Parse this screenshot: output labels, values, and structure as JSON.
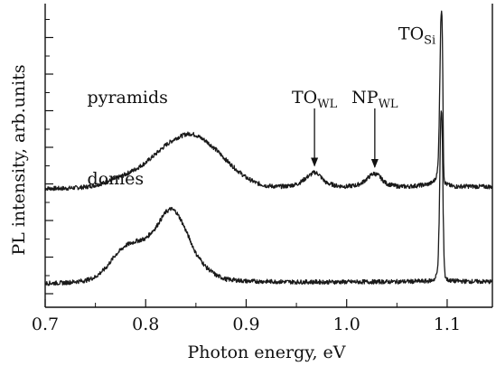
{
  "chart_data": {
    "type": "line",
    "xlabel": "Photon energy, eV",
    "ylabel": "PL intensity, arb.units",
    "xlim": [
      0.7,
      1.145
    ],
    "ylim": [
      0,
      1
    ],
    "x_ticks": [
      "0.7",
      "0.8",
      "0.9",
      "1.0",
      "1.1"
    ],
    "y_ticks_labeled": false,
    "grid": false,
    "line_color": "#1a1a1a",
    "series": [
      {
        "name": "pyramids",
        "x": [
          0.7,
          0.72,
          0.74,
          0.75,
          0.76,
          0.77,
          0.78,
          0.79,
          0.8,
          0.81,
          0.82,
          0.83,
          0.84,
          0.845,
          0.85,
          0.86,
          0.87,
          0.88,
          0.89,
          0.9,
          0.91,
          0.92,
          0.93,
          0.94,
          0.95,
          0.955,
          0.96,
          0.965,
          0.968,
          0.972,
          0.976,
          0.98,
          0.99,
          1.0,
          1.01,
          1.015,
          1.02,
          1.025,
          1.028,
          1.032,
          1.036,
          1.04,
          1.05,
          1.06,
          1.07,
          1.08,
          1.085,
          1.088,
          1.09,
          1.091,
          1.092,
          1.093,
          1.0935,
          1.094,
          1.0945,
          1.095,
          1.0955,
          1.096,
          1.0965,
          1.097,
          1.098,
          1.1,
          1.105,
          1.11,
          1.12,
          1.13,
          1.145
        ],
        "y": [
          0.385,
          0.385,
          0.39,
          0.397,
          0.407,
          0.421,
          0.437,
          0.456,
          0.48,
          0.512,
          0.545,
          0.57,
          0.585,
          0.587,
          0.582,
          0.56,
          0.528,
          0.49,
          0.455,
          0.425,
          0.405,
          0.395,
          0.392,
          0.393,
          0.4,
          0.41,
          0.425,
          0.438,
          0.445,
          0.438,
          0.42,
          0.405,
          0.395,
          0.392,
          0.397,
          0.405,
          0.42,
          0.437,
          0.44,
          0.432,
          0.415,
          0.402,
          0.393,
          0.392,
          0.395,
          0.4,
          0.406,
          0.418,
          0.44,
          0.48,
          0.62,
          0.85,
          0.99,
          1.03,
          1.04,
          1.0,
          0.88,
          0.64,
          0.47,
          0.42,
          0.405,
          0.4,
          0.393,
          0.392,
          0.393,
          0.392,
          0.391
        ]
      },
      {
        "name": "domes",
        "x": [
          0.7,
          0.72,
          0.74,
          0.75,
          0.76,
          0.77,
          0.78,
          0.79,
          0.8,
          0.81,
          0.815,
          0.82,
          0.825,
          0.83,
          0.835,
          0.84,
          0.85,
          0.86,
          0.87,
          0.88,
          0.9,
          0.95,
          1.0,
          1.05,
          1.08,
          1.085,
          1.088,
          1.09,
          1.091,
          1.092,
          1.093,
          1.0935,
          1.094,
          1.0945,
          1.095,
          1.0955,
          1.096,
          1.097,
          1.098,
          1.1,
          1.105,
          1.12,
          1.145
        ],
        "y": [
          0.035,
          0.037,
          0.045,
          0.058,
          0.09,
          0.14,
          0.175,
          0.19,
          0.2,
          0.24,
          0.27,
          0.298,
          0.31,
          0.3,
          0.27,
          0.23,
          0.145,
          0.095,
          0.065,
          0.05,
          0.043,
          0.04,
          0.04,
          0.041,
          0.043,
          0.046,
          0.052,
          0.075,
          0.12,
          0.26,
          0.5,
          0.64,
          0.67,
          0.66,
          0.62,
          0.5,
          0.3,
          0.12,
          0.06,
          0.048,
          0.044,
          0.042,
          0.041
        ]
      }
    ],
    "annotations": [
      {
        "id": "pyramids",
        "text": "pyramids",
        "x": 0.782,
        "y": 0.7
      },
      {
        "id": "domes",
        "text": "domes",
        "x": 0.77,
        "y": 0.4
      },
      {
        "id": "to-wl",
        "main": "TO",
        "sub": "WL",
        "x": 0.968,
        "y": 0.7,
        "arrow": true,
        "arrow_y1": 0.68,
        "arrow_y2": 0.465
      },
      {
        "id": "np-wl",
        "main": "NP",
        "sub": "WL",
        "x": 1.028,
        "y": 0.7,
        "arrow": true,
        "arrow_y1": 0.68,
        "arrow_y2": 0.46
      },
      {
        "id": "to-si",
        "main": "TO",
        "sub": "Si",
        "x": 1.07,
        "y": 0.935
      }
    ]
  }
}
